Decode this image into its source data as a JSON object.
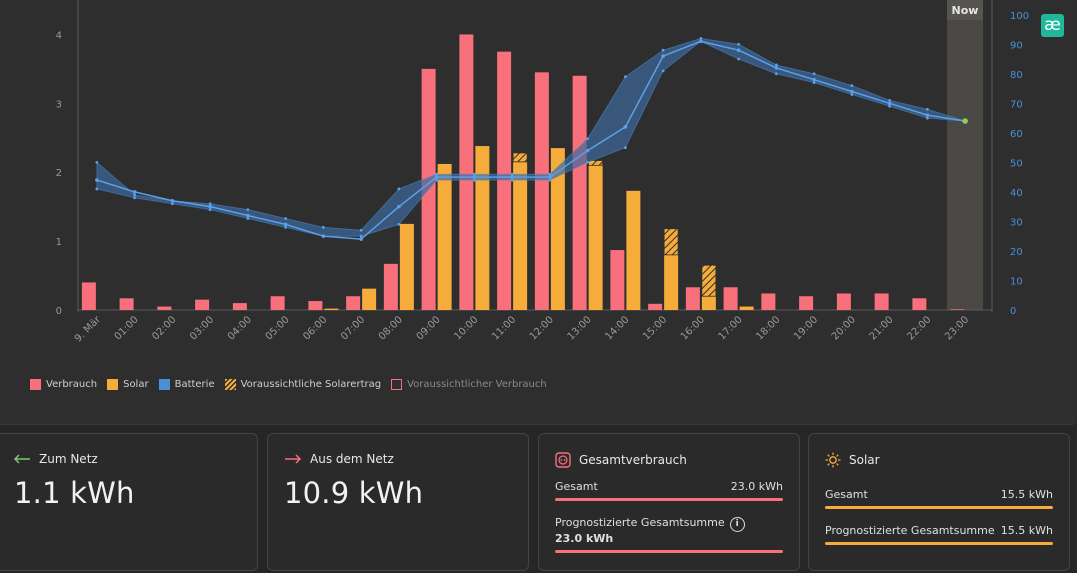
{
  "chart_data": {
    "type": "bar",
    "categories": [
      "9. Mär",
      "01:00",
      "02:00",
      "03:00",
      "04:00",
      "05:00",
      "06:00",
      "07:00",
      "08:00",
      "09:00",
      "10:00",
      "11:00",
      "12:00",
      "13:00",
      "14:00",
      "15:00",
      "16:00",
      "17:00",
      "18:00",
      "19:00",
      "20:00",
      "21:00",
      "22:00",
      "23:00"
    ],
    "series": [
      {
        "name": "Verbrauch",
        "color": "#f7707b",
        "values": [
          0.4,
          0.17,
          0.05,
          0.15,
          0.1,
          0.2,
          0.13,
          0.2,
          0.67,
          3.5,
          4.0,
          3.75,
          3.45,
          3.4,
          0.87,
          0.09,
          0.33,
          0.33,
          0.24,
          0.2,
          0.24,
          0.24,
          0.17,
          0.01
        ]
      },
      {
        "name": "Solar",
        "color": "#f6ac3b",
        "values": [
          0,
          0,
          0,
          0,
          0,
          0,
          0.02,
          0.31,
          1.25,
          2.12,
          2.38,
          2.15,
          2.35,
          2.1,
          1.73,
          0.8,
          0.2,
          0.05,
          0,
          0,
          0,
          0,
          0,
          0
        ]
      },
      {
        "name": "Voraussichtliche Solarertrag",
        "color": "#f6ac3b",
        "values": [
          0,
          0,
          0,
          0,
          0,
          0,
          0,
          0,
          0,
          0,
          0,
          0.13,
          0,
          0.07,
          0,
          0.38,
          0.45,
          0,
          0,
          0,
          0,
          0,
          0,
          0
        ]
      }
    ],
    "battery": {
      "name": "Batterie",
      "color": "#4a90d9",
      "values": [
        44,
        40,
        37,
        35,
        32,
        29,
        25,
        24,
        35,
        45,
        45,
        45,
        45,
        54,
        62,
        86,
        91,
        88,
        82,
        78,
        74,
        70,
        66,
        64
      ],
      "band_low": [
        41,
        38,
        36,
        34,
        31,
        28,
        25,
        25,
        29,
        44,
        44,
        44,
        44,
        50,
        55,
        81,
        91,
        85,
        80,
        77,
        73,
        69,
        65,
        64
      ],
      "band_high": [
        50,
        39,
        37,
        36,
        34,
        31,
        28,
        27,
        41,
        46,
        46,
        46,
        46,
        58,
        79,
        88,
        92,
        90,
        83,
        80,
        76,
        71,
        68,
        64
      ]
    },
    "ylim": [
      0,
      4.5
    ],
    "yticks": [
      0,
      1,
      2,
      3,
      4
    ],
    "y2lim": [
      0,
      105
    ],
    "y2ticks": [
      0,
      10,
      20,
      30,
      40,
      50,
      60,
      70,
      80,
      90,
      100
    ],
    "now_label": "Now"
  },
  "legend": [
    {
      "label": "Verbrauch",
      "type": "solid",
      "color": "#f7707b"
    },
    {
      "label": "Solar",
      "type": "solid",
      "color": "#f6ac3b"
    },
    {
      "label": "Batterie",
      "type": "solid",
      "color": "#4a90d9"
    },
    {
      "label": "Voraussichtliche Solarertrag",
      "type": "hatch",
      "color": "#f6ac3b"
    },
    {
      "label": "Voraussichtlicher Verbrauch",
      "type": "outline",
      "color": "#f7707b"
    }
  ],
  "cards": {
    "to_grid": {
      "title": "Zum Netz",
      "value": "1.1 kWh",
      "arrow_color": "#7bc96f"
    },
    "from_grid": {
      "title": "Aus dem Netz",
      "value": "10.9 kWh",
      "arrow_color": "#f7707b"
    },
    "consumption": {
      "title": "Gesamtverbrauch",
      "total_label": "Gesamt",
      "total_value": "23.0 kWh",
      "forecast_label": "Prognostizierte Gesamtsumme",
      "forecast_value": "23.0 kWh",
      "color": "#f7707b"
    },
    "solar": {
      "title": "Solar",
      "total_label": "Gesamt",
      "total_value": "15.5 kWh",
      "forecast_label": "Prognostizierte Gesamtsumme",
      "forecast_value": "15.5 kWh",
      "color": "#f6ac3b"
    }
  },
  "badge": {
    "text": "æ",
    "color": "#1fb89a"
  }
}
